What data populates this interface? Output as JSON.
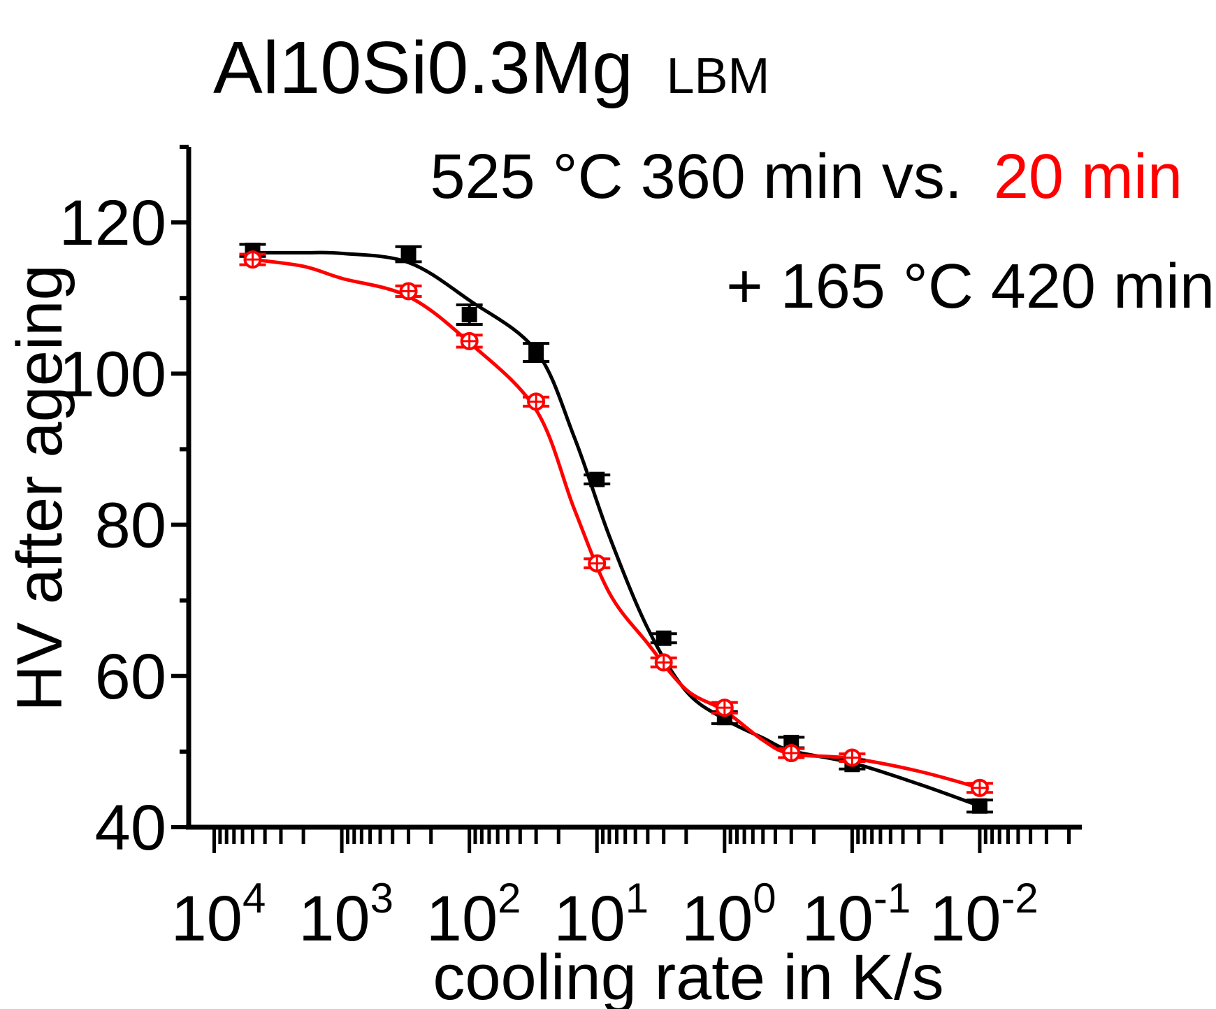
{
  "colors": {
    "black_series": "#000000",
    "red_series": "#ff0000",
    "axis": "#000000",
    "background": "#ffffff"
  },
  "chart_data": {
    "type": "scatter",
    "title": {
      "main": "Al10Si0.3Mg",
      "suffix": "LBM"
    },
    "legend": {
      "line1_black": "525 °C 360 min vs.",
      "line1_red": "20 min",
      "line2": "+ 165 °C 420 min"
    },
    "xlabel": "cooling rate in K/s",
    "ylabel": "HV after ageing",
    "x_scale": "log",
    "x_reversed": true,
    "xlim_exponent": [
      4.2,
      -2.8
    ],
    "ylim": [
      40,
      130
    ],
    "yticks": [
      40,
      60,
      80,
      100,
      120
    ],
    "xtick_labels": [
      {
        "base": "10",
        "exp": "4",
        "value_exponent": 4
      },
      {
        "base": "10",
        "exp": "3",
        "value_exponent": 3
      },
      {
        "base": "10",
        "exp": "2",
        "value_exponent": 2
      },
      {
        "base": "10",
        "exp": "1",
        "value_exponent": 1
      },
      {
        "base": "10",
        "exp": "0",
        "value_exponent": 0
      },
      {
        "base": "10",
        "exp": "-1",
        "value_exponent": -1
      },
      {
        "base": "10",
        "exp": "-2",
        "value_exponent": -2
      }
    ],
    "series": [
      {
        "name": "525 °C 360 min",
        "color": "#000000",
        "marker": "square",
        "x": [
          5000,
          300,
          100,
          30,
          10,
          3,
          1,
          0.3,
          0.1,
          0.01
        ],
        "y": [
          116.3,
          115.8,
          107.8,
          102.8,
          86.0,
          65.0,
          54.5,
          51.2,
          48.3,
          42.8
        ],
        "err": [
          0.8,
          1.0,
          1.3,
          1.2,
          0.6,
          0.6,
          0.8,
          0.7,
          0.6,
          0.8
        ],
        "fit_y": [
          116.0,
          116.0,
          115.9,
          114.7,
          109.7,
          103.0,
          91.5,
          78.5,
          66.3,
          58.0,
          54.3,
          51.8,
          50.1,
          48.5,
          45.7,
          42.8
        ]
      },
      {
        "name": "20 min",
        "color": "#ff0000",
        "marker": "open-circle-cross",
        "x": [
          5000,
          300,
          100,
          30,
          10,
          3,
          1,
          0.3,
          0.1,
          0.01
        ],
        "y": [
          115.1,
          110.9,
          104.3,
          96.3,
          74.9,
          61.8,
          55.8,
          49.8,
          49.2,
          45.2
        ],
        "err": [
          0.7,
          0.7,
          0.8,
          0.6,
          0.6,
          0.6,
          0.7,
          0.6,
          0.5,
          0.6
        ],
        "fit_y": [
          115.1,
          114.2,
          112.6,
          110.2,
          104.1,
          95.2,
          82.0,
          71.0,
          64.3,
          58.2,
          55.4,
          51.5,
          49.7,
          49.1,
          47.4,
          45.2
        ]
      }
    ],
    "fit_x": [
      5000,
      2000,
      1000,
      300,
      100,
      30,
      15,
      8,
      4,
      2,
      1,
      0.5,
      0.3,
      0.1,
      0.03,
      0.01
    ]
  }
}
